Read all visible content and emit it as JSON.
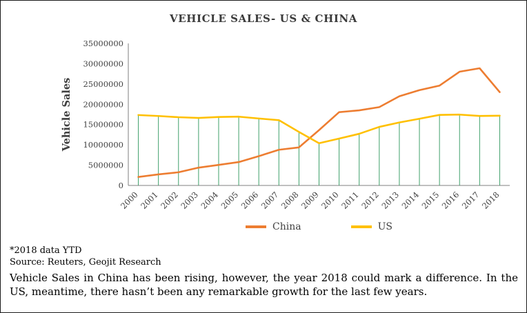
{
  "chart_data": {
    "type": "line",
    "title": "VEHICLE SALES- US & CHINA",
    "xlabel": "",
    "ylabel": "Vehicle Sales",
    "ylim": [
      0,
      35000000
    ],
    "ytick_step": 5000000,
    "grid": false,
    "legend_position": "bottom",
    "categories": [
      "2000",
      "2001",
      "2002",
      "2003",
      "2004",
      "2005",
      "2006",
      "2007",
      "2008",
      "2009",
      "2010",
      "2011",
      "2012",
      "2013",
      "2014",
      "2015",
      "2016",
      "2017",
      "2018"
    ],
    "series": [
      {
        "name": "China",
        "color": "#ED7D31",
        "values": [
          2090000,
          2730000,
          3250000,
          4390000,
          5070000,
          5760000,
          7220000,
          8790000,
          9380000,
          13640000,
          18060000,
          18510000,
          19310000,
          21980000,
          23490000,
          24600000,
          28030000,
          28880000,
          23000000
        ]
      },
      {
        "name": "US",
        "color": "#FFC000",
        "values": [
          17350000,
          17120000,
          16820000,
          16640000,
          16870000,
          16950000,
          16500000,
          16090000,
          13190000,
          10400000,
          11550000,
          12730000,
          14430000,
          15530000,
          16440000,
          17390000,
          17460000,
          17130000,
          17200000
        ]
      }
    ],
    "droplines": {
      "series": "US",
      "color": "#3FA06A"
    },
    "axis_color": "#7f7f7f",
    "tick_label_color": "#404040"
  },
  "notes": {
    "line1": "*2018 data YTD",
    "line2": "Source: Reuters, Geojit Research",
    "paragraph": "Vehicle Sales in China has been rising, however, the year 2018 could mark a difference. In the US, meantime, there hasn’t been any remarkable growth for the last few years."
  }
}
